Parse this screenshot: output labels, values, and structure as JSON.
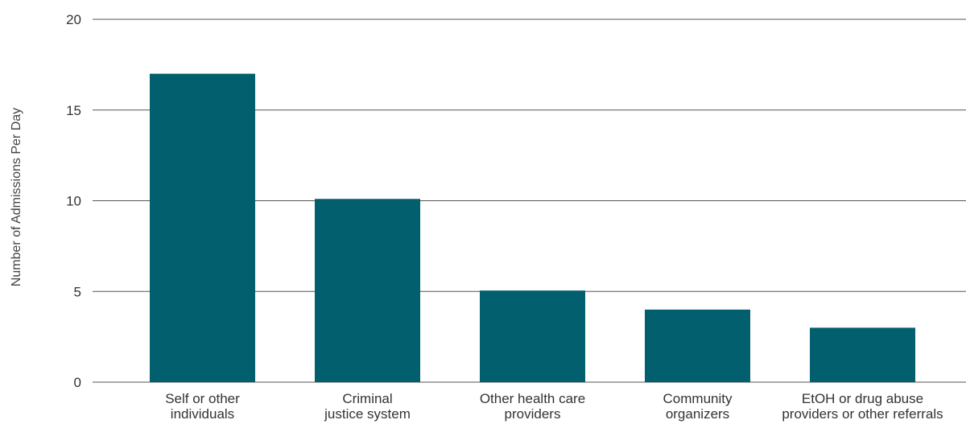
{
  "chart_data": {
    "type": "bar",
    "title": "",
    "xlabel": "",
    "ylabel": "Number of Admissions Per Day",
    "ylim": [
      0,
      20
    ],
    "yticks": [
      0,
      5,
      10,
      15,
      20
    ],
    "grid": true,
    "bar_color": "#02606e",
    "categories": [
      [
        "Self or other",
        "individuals"
      ],
      [
        "Criminal",
        "justice system"
      ],
      [
        "Other health care",
        "providers"
      ],
      [
        "Community",
        "organizers"
      ],
      [
        "EtOH or drug abuse",
        "providers or other referrals"
      ]
    ],
    "values": [
      17,
      10.1,
      5.05,
      4,
      3
    ]
  }
}
